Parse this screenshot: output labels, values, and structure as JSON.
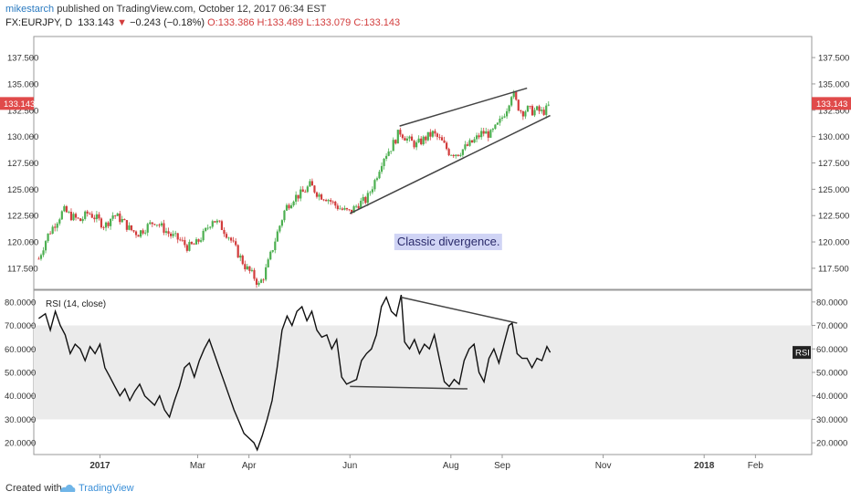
{
  "header": {
    "author": "mikestarch",
    "published_text": "published on TradingView.com, October 12, 2017 06:34 EST",
    "symbol": "FX:EURJPY, D",
    "last": "133.143",
    "change": "−0.243 (−0.18%)",
    "open": "O:133.386",
    "high": "H:133.489",
    "low": "L:133.079",
    "close": "C:133.143"
  },
  "footer": {
    "created_with": "Created with",
    "brand": "TradingView"
  },
  "colors": {
    "up": "#4caf50",
    "down": "#d23c3c",
    "price_label": "#e04a4a",
    "rsi_line": "#111111",
    "rsi_band": "#ebebeb",
    "annotation_bg": "#d0d4f5"
  },
  "chart_data": [
    {
      "type": "candlestick",
      "panel": "price",
      "ylim": [
        115.5,
        139.5
      ],
      "y_ticks": [
        "137.500",
        "135.000",
        "132.500",
        "130.000",
        "127.500",
        "125.000",
        "122.500",
        "120.000",
        "117.500"
      ],
      "y_tick_values": [
        137.5,
        135,
        132.5,
        130,
        127.5,
        125,
        122.5,
        120,
        117.5
      ],
      "last_price_label": "133.143",
      "last_price": 133.143,
      "x_ticks": [
        "2017",
        "Mar",
        "Apr",
        "Jun",
        "Aug",
        "Sep",
        "Nov",
        "2018",
        "Feb"
      ],
      "x_tick_days": [
        0,
        59,
        90,
        151,
        212,
        243,
        304,
        365,
        396
      ],
      "x_range_days": [
        -40,
        430
      ],
      "close": [
        [
          -37,
          118.4
        ],
        [
          -32,
          120.5
        ],
        [
          -27,
          121.8
        ],
        [
          -22,
          123.0
        ],
        [
          -17,
          122.4
        ],
        [
          -12,
          122.0
        ],
        [
          -7,
          122.8
        ],
        [
          -2,
          122.2
        ],
        [
          3,
          121.5
        ],
        [
          8,
          122.6
        ],
        [
          13,
          122.1
        ],
        [
          18,
          121.2
        ],
        [
          23,
          120.8
        ],
        [
          28,
          121.4
        ],
        [
          33,
          122.0
        ],
        [
          38,
          121.3
        ],
        [
          43,
          120.6
        ],
        [
          48,
          120.2
        ],
        [
          53,
          119.5
        ],
        [
          58,
          119.8
        ],
        [
          63,
          120.8
        ],
        [
          68,
          122.2
        ],
        [
          73,
          121.5
        ],
        [
          78,
          120.5
        ],
        [
          83,
          119.0
        ],
        [
          88,
          117.6
        ],
        [
          93,
          116.7
        ],
        [
          96,
          115.9
        ],
        [
          99,
          116.8
        ],
        [
          102,
          118.2
        ],
        [
          107,
          120.8
        ],
        [
          112,
          123.2
        ],
        [
          117,
          124.2
        ],
        [
          122,
          124.6
        ],
        [
          127,
          125.4
        ],
        [
          132,
          124.5
        ],
        [
          137,
          124.2
        ],
        [
          142,
          123.5
        ],
        [
          147,
          123.0
        ],
        [
          151,
          122.8
        ],
        [
          156,
          123.6
        ],
        [
          161,
          124.0
        ],
        [
          166,
          125.8
        ],
        [
          171,
          128.0
        ],
        [
          176,
          129.0
        ],
        [
          181,
          130.5
        ],
        [
          186,
          129.7
        ],
        [
          191,
          129.2
        ],
        [
          196,
          129.8
        ],
        [
          201,
          130.3
        ],
        [
          206,
          129.6
        ],
        [
          211,
          128.5
        ],
        [
          216,
          128.4
        ],
        [
          221,
          129.0
        ],
        [
          226,
          129.6
        ],
        [
          231,
          130.4
        ],
        [
          236,
          130.2
        ],
        [
          241,
          131.2
        ],
        [
          246,
          132.8
        ],
        [
          249,
          134.3
        ],
        [
          252,
          133.0
        ],
        [
          255,
          132.3
        ],
        [
          258,
          132.6
        ],
        [
          261,
          132.4
        ],
        [
          264,
          132.5
        ],
        [
          267,
          132.3
        ],
        [
          270,
          132.6
        ],
        [
          272,
          133.143
        ]
      ],
      "trendlines": [
        {
          "name": "upper",
          "points": [
            [
              181,
              131.0
            ],
            [
              258,
              134.6
            ]
          ]
        },
        {
          "name": "lower",
          "points": [
            [
              151,
              122.7
            ],
            [
              272,
              132.0
            ]
          ]
        }
      ],
      "annotation": {
        "text": "Classic divergence.",
        "x": 212,
        "y": 120.0
      }
    },
    {
      "type": "line",
      "panel": "rsi",
      "legend": "RSI (14, close)",
      "axis_badge": "RSI",
      "ylim": [
        15,
        85
      ],
      "y_ticks": [
        "80.0000",
        "70.0000",
        "60.0000",
        "50.0000",
        "40.0000",
        "30.0000",
        "20.0000"
      ],
      "y_tick_values": [
        80,
        70,
        60,
        50,
        40,
        30,
        20
      ],
      "band": [
        30,
        70
      ],
      "last_value": 58.5,
      "points": [
        [
          -37,
          73
        ],
        [
          -33,
          75
        ],
        [
          -30,
          68
        ],
        [
          -27,
          76
        ],
        [
          -24,
          70
        ],
        [
          -21,
          66
        ],
        [
          -18,
          58
        ],
        [
          -15,
          62
        ],
        [
          -12,
          60
        ],
        [
          -9,
          55
        ],
        [
          -6,
          61
        ],
        [
          -3,
          58
        ],
        [
          0,
          62
        ],
        [
          3,
          52
        ],
        [
          6,
          48
        ],
        [
          9,
          44
        ],
        [
          12,
          40
        ],
        [
          15,
          43
        ],
        [
          18,
          38
        ],
        [
          21,
          42
        ],
        [
          24,
          45
        ],
        [
          27,
          40
        ],
        [
          30,
          38
        ],
        [
          33,
          36
        ],
        [
          36,
          40
        ],
        [
          39,
          34
        ],
        [
          42,
          31
        ],
        [
          45,
          38
        ],
        [
          48,
          44
        ],
        [
          51,
          52
        ],
        [
          54,
          54
        ],
        [
          57,
          48
        ],
        [
          60,
          55
        ],
        [
          63,
          60
        ],
        [
          66,
          64
        ],
        [
          69,
          58
        ],
        [
          72,
          52
        ],
        [
          75,
          46
        ],
        [
          78,
          40
        ],
        [
          81,
          34
        ],
        [
          84,
          29
        ],
        [
          87,
          24
        ],
        [
          90,
          22
        ],
        [
          93,
          20
        ],
        [
          95,
          17
        ],
        [
          98,
          23
        ],
        [
          101,
          30
        ],
        [
          104,
          38
        ],
        [
          107,
          52
        ],
        [
          110,
          68
        ],
        [
          113,
          74
        ],
        [
          116,
          70
        ],
        [
          119,
          76
        ],
        [
          122,
          78
        ],
        [
          125,
          72
        ],
        [
          128,
          76
        ],
        [
          131,
          68
        ],
        [
          134,
          65
        ],
        [
          137,
          66
        ],
        [
          140,
          60
        ],
        [
          143,
          64
        ],
        [
          146,
          48
        ],
        [
          149,
          45
        ],
        [
          152,
          46
        ],
        [
          155,
          47
        ],
        [
          158,
          55
        ],
        [
          161,
          58
        ],
        [
          164,
          60
        ],
        [
          167,
          66
        ],
        [
          170,
          78
        ],
        [
          173,
          82
        ],
        [
          176,
          76
        ],
        [
          179,
          74
        ],
        [
          182,
          83
        ],
        [
          184,
          63
        ],
        [
          187,
          60
        ],
        [
          190,
          64
        ],
        [
          193,
          58
        ],
        [
          196,
          62
        ],
        [
          199,
          60
        ],
        [
          202,
          66
        ],
        [
          205,
          56
        ],
        [
          208,
          46
        ],
        [
          211,
          44
        ],
        [
          214,
          47
        ],
        [
          217,
          45
        ],
        [
          220,
          55
        ],
        [
          223,
          60
        ],
        [
          226,
          62
        ],
        [
          229,
          50
        ],
        [
          232,
          46
        ],
        [
          235,
          56
        ],
        [
          238,
          60
        ],
        [
          241,
          54
        ],
        [
          244,
          62
        ],
        [
          247,
          70
        ],
        [
          249,
          71
        ],
        [
          252,
          58
        ],
        [
          255,
          56
        ],
        [
          258,
          56
        ],
        [
          261,
          52
        ],
        [
          264,
          56
        ],
        [
          267,
          55
        ],
        [
          270,
          61
        ],
        [
          272,
          58.5
        ]
      ],
      "trendlines": [
        {
          "name": "rsi-upper",
          "points": [
            [
              182,
              82
            ],
            [
              252,
              71
            ]
          ]
        },
        {
          "name": "rsi-lower",
          "points": [
            [
              151,
              44
            ],
            [
              222,
              43
            ]
          ]
        }
      ]
    }
  ]
}
